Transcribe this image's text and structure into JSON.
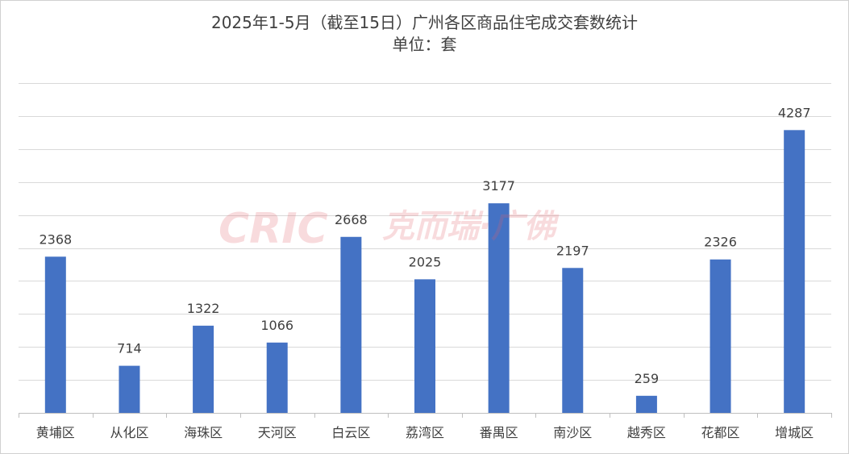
{
  "chart_data": {
    "type": "bar",
    "title": "2025年1-5月（截至15日）广州各区商品住宅成交套数统计",
    "subtitle": "单位：套",
    "categories": [
      "黄埔区",
      "从化区",
      "海珠区",
      "天河区",
      "白云区",
      "荔湾区",
      "番禺区",
      "南沙区",
      "越秀区",
      "花都区",
      "增城区"
    ],
    "values": [
      2368,
      714,
      1322,
      1066,
      2668,
      2025,
      3177,
      2197,
      259,
      2326,
      4287
    ],
    "ylim": [
      0,
      5000
    ],
    "grid": true,
    "legend": "none",
    "bar_color": "#4472c4"
  },
  "watermark": {
    "logo_text": "CRIC",
    "text": "克而瑞·广佛"
  }
}
